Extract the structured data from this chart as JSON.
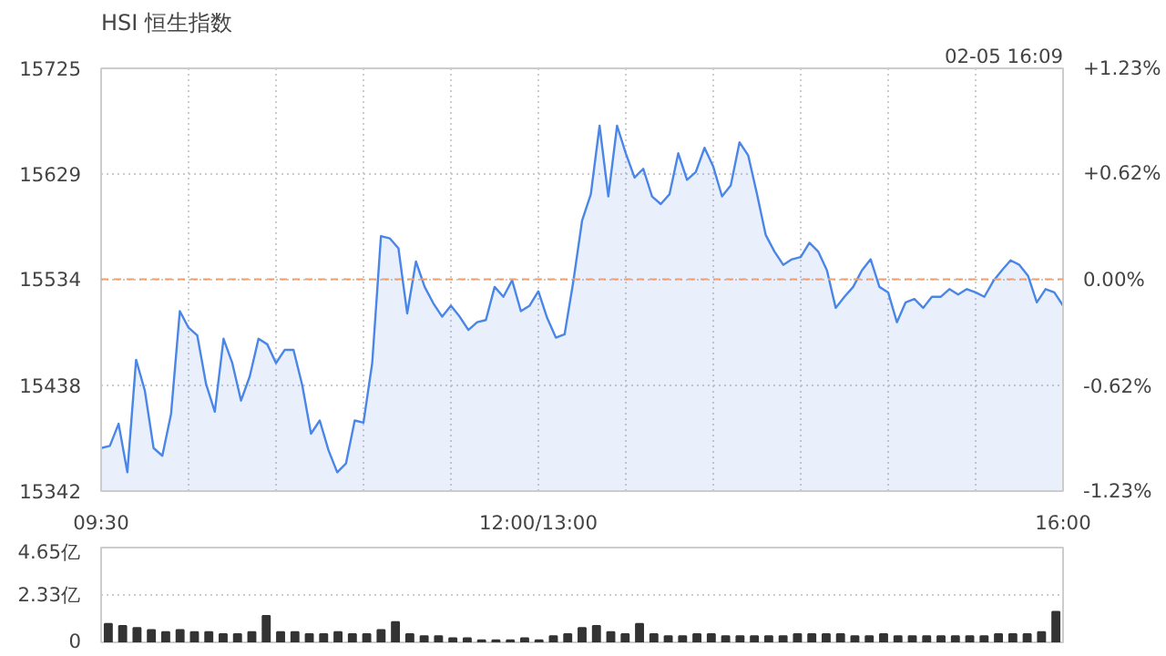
{
  "chart_data": [
    {
      "type": "area",
      "title": "HSI 恒生指数",
      "annotations": [
        "02-05 16:09"
      ],
      "categories": [
        "09:30",
        null,
        null,
        null,
        null,
        null,
        null,
        null,
        null,
        null,
        null,
        null,
        null,
        null,
        null,
        null,
        null,
        null,
        null,
        null,
        null,
        null,
        null,
        null,
        null,
        null,
        null,
        null,
        null,
        null,
        null,
        null,
        null,
        null,
        null,
        null,
        null,
        null,
        null,
        null,
        null,
        null,
        null,
        null,
        null,
        null,
        null,
        null,
        null,
        null,
        "12:00/13:00",
        null,
        null,
        null,
        null,
        null,
        null,
        null,
        null,
        null,
        null,
        null,
        null,
        null,
        null,
        null,
        null,
        null,
        null,
        null,
        null,
        null,
        null,
        null,
        null,
        null,
        null,
        null,
        null,
        null,
        null,
        null,
        null,
        null,
        null,
        null,
        null,
        null,
        null,
        null,
        null,
        null,
        null,
        null,
        null,
        null,
        null,
        null,
        null,
        null,
        null,
        null,
        null,
        null,
        null,
        null,
        null,
        null,
        null,
        null,
        "16:00"
      ],
      "series": [
        {
          "color": "#4a86e8",
          "values": [
            15381,
            15383,
            15403,
            15359,
            15461,
            15433,
            15381,
            15374,
            15412,
            15505,
            15490,
            15483,
            15439,
            15414,
            15480,
            15458,
            15424,
            15446,
            15480,
            15475,
            15458,
            15470,
            15470,
            15438,
            15394,
            15406,
            15379,
            15359,
            15367,
            15406,
            15404,
            15458,
            15573,
            15571,
            15562,
            15503,
            15550,
            15527,
            15512,
            15500,
            15510,
            15500,
            15488,
            15495,
            15497,
            15527,
            15518,
            15533,
            15505,
            15510,
            15523,
            15499,
            15481,
            15484,
            15532,
            15587,
            15611,
            15673,
            15609,
            15673,
            15648,
            15626,
            15634,
            15609,
            15602,
            15611,
            15648,
            15624,
            15631,
            15653,
            15636,
            15609,
            15619,
            15658,
            15646,
            15611,
            15574,
            15559,
            15547,
            15552,
            15554,
            15567,
            15559,
            15542,
            15508,
            15518,
            15527,
            15542,
            15552,
            15527,
            15522,
            15495,
            15513,
            15516,
            15508,
            15518,
            15518,
            15525,
            15520,
            15525,
            15522,
            15518,
            15532,
            15542,
            15551,
            15547,
            15537,
            15513,
            15525,
            15522,
            15510
          ]
        }
      ],
      "ylim": [
        15342,
        15725
      ],
      "yticks": [
        15342,
        15438,
        15534,
        15629,
        15725
      ],
      "y2lim": [
        -1.23,
        1.23
      ],
      "y2ticks": [
        {
          "value": -1.23,
          "label": "-1.23%"
        },
        {
          "value": -0.62,
          "label": "-0.62%"
        },
        {
          "value": 0,
          "label": "0.00%"
        },
        {
          "value": 0.62,
          "label": "+0.62%"
        },
        {
          "value": 1.23,
          "label": "+1.23%"
        }
      ],
      "ref_lines": [
        {
          "axis": "y",
          "value": 15534,
          "label": null,
          "color": "#f0a070",
          "line_style": "dashed"
        }
      ],
      "grid": true
    },
    {
      "type": "bar",
      "tick_labels": "y",
      "categories": [
        null,
        null,
        null,
        null,
        null,
        null,
        null,
        null,
        null,
        null,
        null,
        null,
        null,
        null,
        null,
        null,
        null,
        null,
        null,
        null,
        null,
        null,
        null,
        null,
        null,
        null,
        null,
        null,
        null,
        null,
        null,
        null,
        null,
        null,
        null,
        null,
        null,
        null,
        null,
        null,
        null,
        null,
        null,
        null,
        null,
        null,
        null,
        null,
        null,
        null,
        null,
        null,
        null,
        null,
        null,
        null,
        null,
        null,
        null,
        null,
        null,
        null,
        null,
        null,
        null,
        null,
        null
      ],
      "series": [
        {
          "color": "#333333",
          "values": [
            0.9,
            0.8,
            0.7,
            0.6,
            0.5,
            0.6,
            0.5,
            0.5,
            0.4,
            0.4,
            0.5,
            1.3,
            0.5,
            0.5,
            0.4,
            0.4,
            0.5,
            0.4,
            0.4,
            0.6,
            1.0,
            0.4,
            0.3,
            0.3,
            0.2,
            0.2,
            0.1,
            0.1,
            0.1,
            0.2,
            0.1,
            0.3,
            0.4,
            0.7,
            0.8,
            0.5,
            0.4,
            0.9,
            0.4,
            0.3,
            0.3,
            0.4,
            0.4,
            0.3,
            0.3,
            0.3,
            0.3,
            0.3,
            0.4,
            0.4,
            0.4,
            0.4,
            0.3,
            0.3,
            0.4,
            0.3,
            0.3,
            0.3,
            0.3,
            0.3,
            0.3,
            0.3,
            0.4,
            0.4,
            0.4,
            0.5,
            1.5
          ]
        }
      ],
      "ylim": [
        0,
        4.65
      ],
      "yticks": [
        0,
        {
          "value": 2.33,
          "label": "2.33亿"
        },
        {
          "value": 4.65,
          "label": "4.65亿"
        }
      ],
      "grid": "y"
    }
  ]
}
